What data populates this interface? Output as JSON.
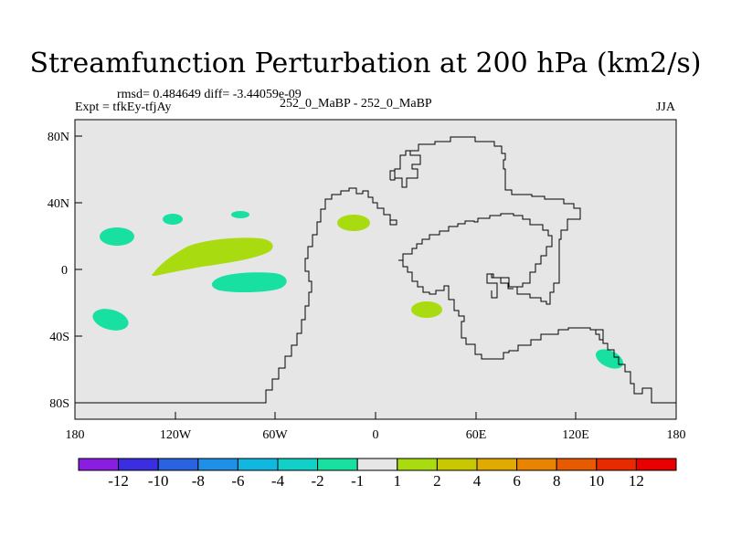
{
  "title": "Streamfunction Perturbation at 200 hPa (km2/s)",
  "stats_text": "rmsd= 0.484649 diff= -3.44059e-09",
  "experiment_label": "Expt = tfkEy-tfjAy",
  "case_label": "252_0_MaBP - 252_0_MaBP",
  "season_label": "JJA",
  "map": {
    "lat_ticks": [
      "80N",
      "40N",
      "0",
      "40S",
      "80S"
    ],
    "lon_ticks": [
      "180",
      "120W",
      "60W",
      "0",
      "60E",
      "120E",
      "180"
    ],
    "background_color": "#e6e6e6",
    "coastline_color": "#000000"
  },
  "colorbar": {
    "labels": [
      "-12",
      "-10",
      "-8",
      "-6",
      "-4",
      "-2",
      "-1",
      "1",
      "2",
      "4",
      "6",
      "8",
      "10",
      "12"
    ],
    "colors": [
      "#8a1ee0",
      "#3a2ee0",
      "#2a63e0",
      "#1e90e8",
      "#10b8e0",
      "#10d0c8",
      "#18e0a0",
      "#e6e6e6",
      "#a8dc10",
      "#c8c800",
      "#e0aa00",
      "#e88400",
      "#e85a00",
      "#e82a00",
      "#e80000"
    ]
  },
  "anomalies": [
    {
      "name": "teal blob west-north",
      "color": "#18e0a0"
    },
    {
      "name": "teal blob north small",
      "color": "#18e0a0"
    },
    {
      "name": "teal blob tiny",
      "color": "#18e0a0"
    },
    {
      "name": "green elongated band",
      "color": "#a8dc10"
    },
    {
      "name": "teal elongated band",
      "color": "#18e0a0"
    },
    {
      "name": "teal blob southwest",
      "color": "#18e0a0"
    },
    {
      "name": "green blob atlantic",
      "color": "#a8dc10"
    },
    {
      "name": "green blob southern africa",
      "color": "#a8dc10"
    },
    {
      "name": "teal blob australia",
      "color": "#18e0a0"
    }
  ]
}
